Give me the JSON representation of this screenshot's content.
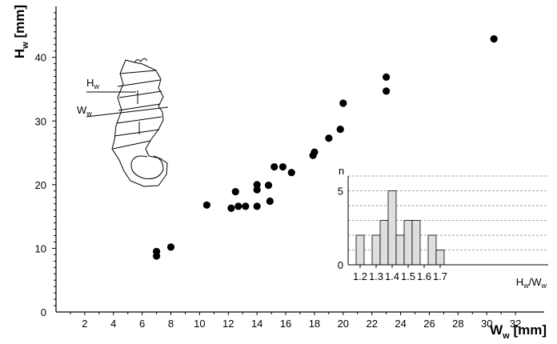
{
  "chart_data": [
    {
      "type": "scatter",
      "xlabel": {
        "main": "W",
        "sub": "w",
        "unit": " [mm]"
      },
      "ylabel": {
        "main": "H",
        "sub": "w",
        "unit": " [mm]"
      },
      "xlim": [
        0,
        34
      ],
      "ylim": [
        0,
        48
      ],
      "xticks": [
        "2",
        "4",
        "6",
        "8",
        "10",
        "12",
        "14",
        "16",
        "18",
        "20",
        "22",
        "24",
        "26",
        "28",
        "30",
        "32"
      ],
      "yticks": [
        "0",
        "10",
        "20",
        "30",
        "40"
      ],
      "points": [
        {
          "x": 7.0,
          "y": 8.8
        },
        {
          "x": 7.0,
          "y": 9.5
        },
        {
          "x": 8.0,
          "y": 10.2
        },
        {
          "x": 10.5,
          "y": 16.8
        },
        {
          "x": 12.2,
          "y": 16.3
        },
        {
          "x": 12.5,
          "y": 18.9
        },
        {
          "x": 12.7,
          "y": 16.6
        },
        {
          "x": 13.2,
          "y": 16.6
        },
        {
          "x": 14.0,
          "y": 16.6
        },
        {
          "x": 14.0,
          "y": 19.2
        },
        {
          "x": 14.0,
          "y": 20.0
        },
        {
          "x": 14.8,
          "y": 19.9
        },
        {
          "x": 14.9,
          "y": 17.4
        },
        {
          "x": 15.2,
          "y": 22.8
        },
        {
          "x": 15.8,
          "y": 22.8
        },
        {
          "x": 16.4,
          "y": 21.9
        },
        {
          "x": 17.9,
          "y": 24.6
        },
        {
          "x": 18.0,
          "y": 25.1
        },
        {
          "x": 19.0,
          "y": 27.3
        },
        {
          "x": 19.8,
          "y": 28.7
        },
        {
          "x": 20.0,
          "y": 32.8
        },
        {
          "x": 23.0,
          "y": 34.7
        },
        {
          "x": 23.0,
          "y": 36.9
        },
        {
          "x": 30.5,
          "y": 42.9
        }
      ]
    },
    {
      "type": "bar",
      "title": "n",
      "xlabel": {
        "h": "H",
        "h_sub": "w",
        "sep": "/",
        "w": "W",
        "w_sub": "w"
      },
      "yticks": [
        "0",
        "5"
      ],
      "ylim": [
        0,
        6
      ],
      "xticks": [
        "1.2",
        "1.3",
        "1.4",
        "1.5",
        "1.6",
        "1.7"
      ],
      "bin_width": 0.05,
      "bins": [
        {
          "x": 1.2,
          "value": 2
        },
        {
          "x": 1.25,
          "value": 0
        },
        {
          "x": 1.3,
          "value": 2
        },
        {
          "x": 1.35,
          "value": 3
        },
        {
          "x": 1.4,
          "value": 5
        },
        {
          "x": 1.45,
          "value": 2
        },
        {
          "x": 1.5,
          "value": 3
        },
        {
          "x": 1.55,
          "value": 3
        },
        {
          "x": 1.6,
          "value": 0
        },
        {
          "x": 1.65,
          "value": 2
        },
        {
          "x": 1.7,
          "value": 1
        }
      ]
    }
  ],
  "figure": {
    "hw_label": {
      "main": "H",
      "sub": "w"
    },
    "ww_label": {
      "main": "W",
      "sub": "w"
    }
  },
  "colors": {
    "points": "#000000",
    "bars": "#dedede",
    "axes": "#000000"
  }
}
